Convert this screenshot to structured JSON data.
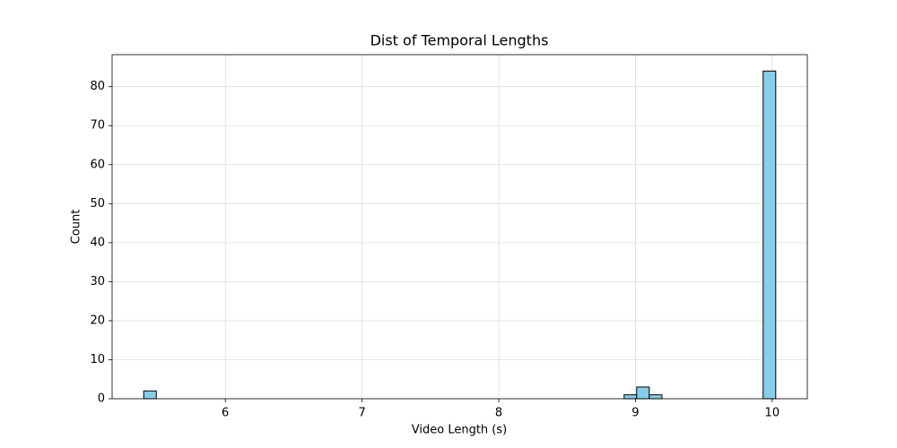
{
  "chart_data": {
    "type": "histogram",
    "title": "Dist of Temporal Lengths",
    "x_label": "Video Length (s)",
    "y_label": "Count",
    "bins": [
      5.403,
      5.495,
      5.588,
      5.68,
      5.773,
      5.865,
      5.958,
      6.05,
      6.143,
      6.235,
      6.328,
      6.42,
      6.513,
      6.605,
      6.697,
      6.79,
      6.882,
      6.975,
      7.067,
      7.16,
      7.252,
      7.345,
      7.437,
      7.53,
      7.622,
      7.715,
      7.807,
      7.899,
      7.992,
      8.084,
      8.177,
      8.269,
      8.362,
      8.454,
      8.547,
      8.639,
      8.732,
      8.824,
      8.917,
      9.009,
      9.101,
      9.194,
      9.286,
      9.379,
      9.471,
      9.564,
      9.656,
      9.749,
      9.841,
      9.934,
      10.026
    ],
    "values": [
      2,
      0,
      0,
      0,
      0,
      0,
      0,
      0,
      0,
      0,
      0,
      0,
      0,
      0,
      0,
      0,
      0,
      0,
      0,
      0,
      0,
      0,
      0,
      0,
      0,
      0,
      0,
      0,
      0,
      0,
      0,
      0,
      0,
      0,
      0,
      0,
      0,
      0,
      1,
      3,
      1,
      0,
      0,
      0,
      0,
      0,
      0,
      0,
      0,
      84
    ],
    "color": "#87ceeb",
    "edge_color": "#000000",
    "xlim": [
      5.172,
      10.257
    ],
    "xticks": [
      6,
      7,
      8,
      9,
      10
    ],
    "ylim": [
      0,
      88.2
    ],
    "yticks": [
      0,
      10,
      20,
      30,
      40,
      50,
      60,
      70,
      80
    ],
    "grid": true
  }
}
